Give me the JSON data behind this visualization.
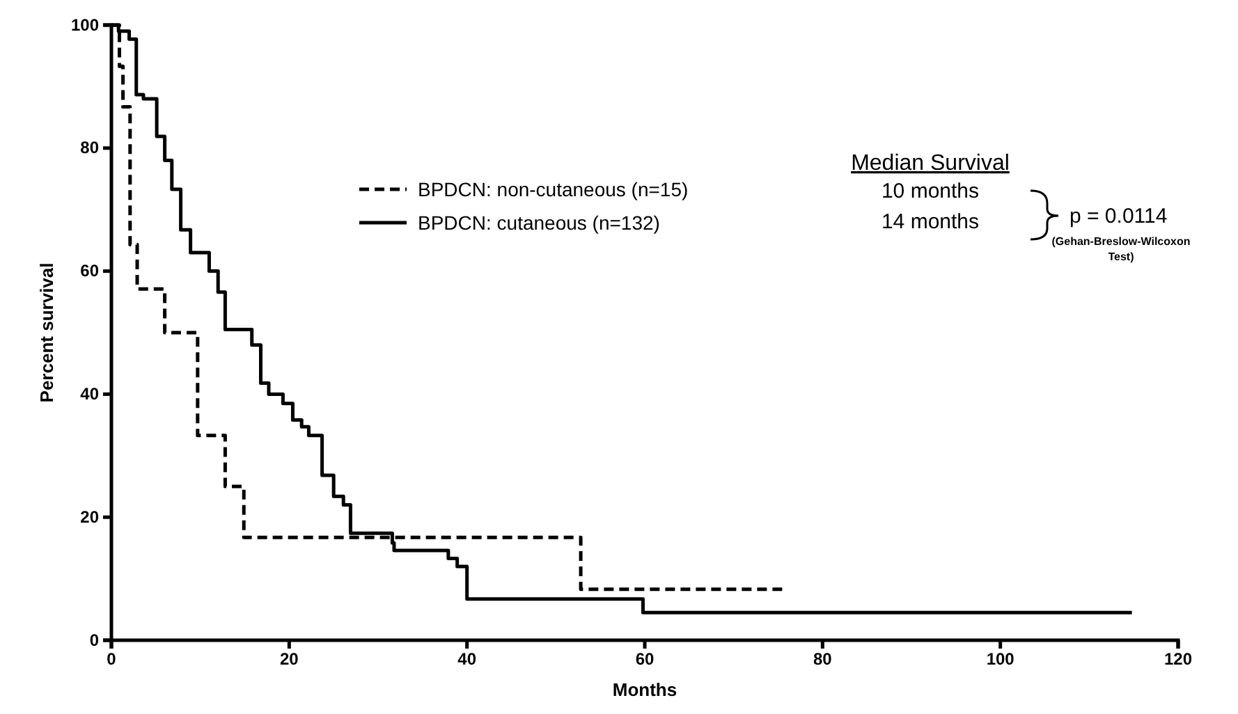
{
  "chart_data": {
    "type": "step",
    "xlabel": "Months",
    "ylabel": "Percent survival",
    "xlim": [
      0,
      120
    ],
    "xticks": [
      0,
      20,
      40,
      60,
      80,
      100,
      120
    ],
    "ylim": [
      0,
      100
    ],
    "yticks": [
      0,
      20,
      40,
      60,
      80,
      100
    ],
    "legend": "left",
    "grid": false,
    "series": [
      {
        "name": "BPDCN: non-cutaneous (n=15)",
        "color": "#000000",
        "line_style": "dashed",
        "x": [
          0,
          0.9,
          1.3,
          2.1,
          2.9,
          6,
          9.7,
          12.8,
          14.9,
          52.8,
          75.8
        ],
        "values": [
          100,
          93.3,
          86.7,
          64.3,
          57.1,
          50,
          33.3,
          25,
          16.7,
          8.3,
          8.3
        ]
      },
      {
        "name": "BPDCN: cutaneous (n=132)",
        "color": "#000000",
        "line_style": "solid",
        "x": [
          0,
          0.8,
          2,
          2.8,
          3.6,
          5.1,
          6,
          6.8,
          7.8,
          8.9,
          11,
          12,
          12.8,
          15.8,
          16.8,
          17.7,
          19.3,
          20.4,
          21.4,
          22.2,
          23.7,
          25,
          26.1,
          26.9,
          31.6,
          31.8,
          37.9,
          38.9,
          40,
          59.8,
          114.8
        ],
        "values": [
          100,
          99,
          97.7,
          88.7,
          88,
          81.9,
          78,
          73.3,
          66.7,
          63,
          60,
          56.6,
          50.5,
          48,
          41.8,
          40,
          38.5,
          35.8,
          34.7,
          33.3,
          26.8,
          23.4,
          22,
          17.4,
          15.8,
          14.6,
          13.3,
          12,
          6.7,
          4.5,
          4.5
        ]
      }
    ],
    "annotations": [
      "Median Survival",
      "10 months",
      "14 months",
      "p = 0.0114",
      "(Gehan-Breslow-Wilcoxon Test)"
    ]
  }
}
